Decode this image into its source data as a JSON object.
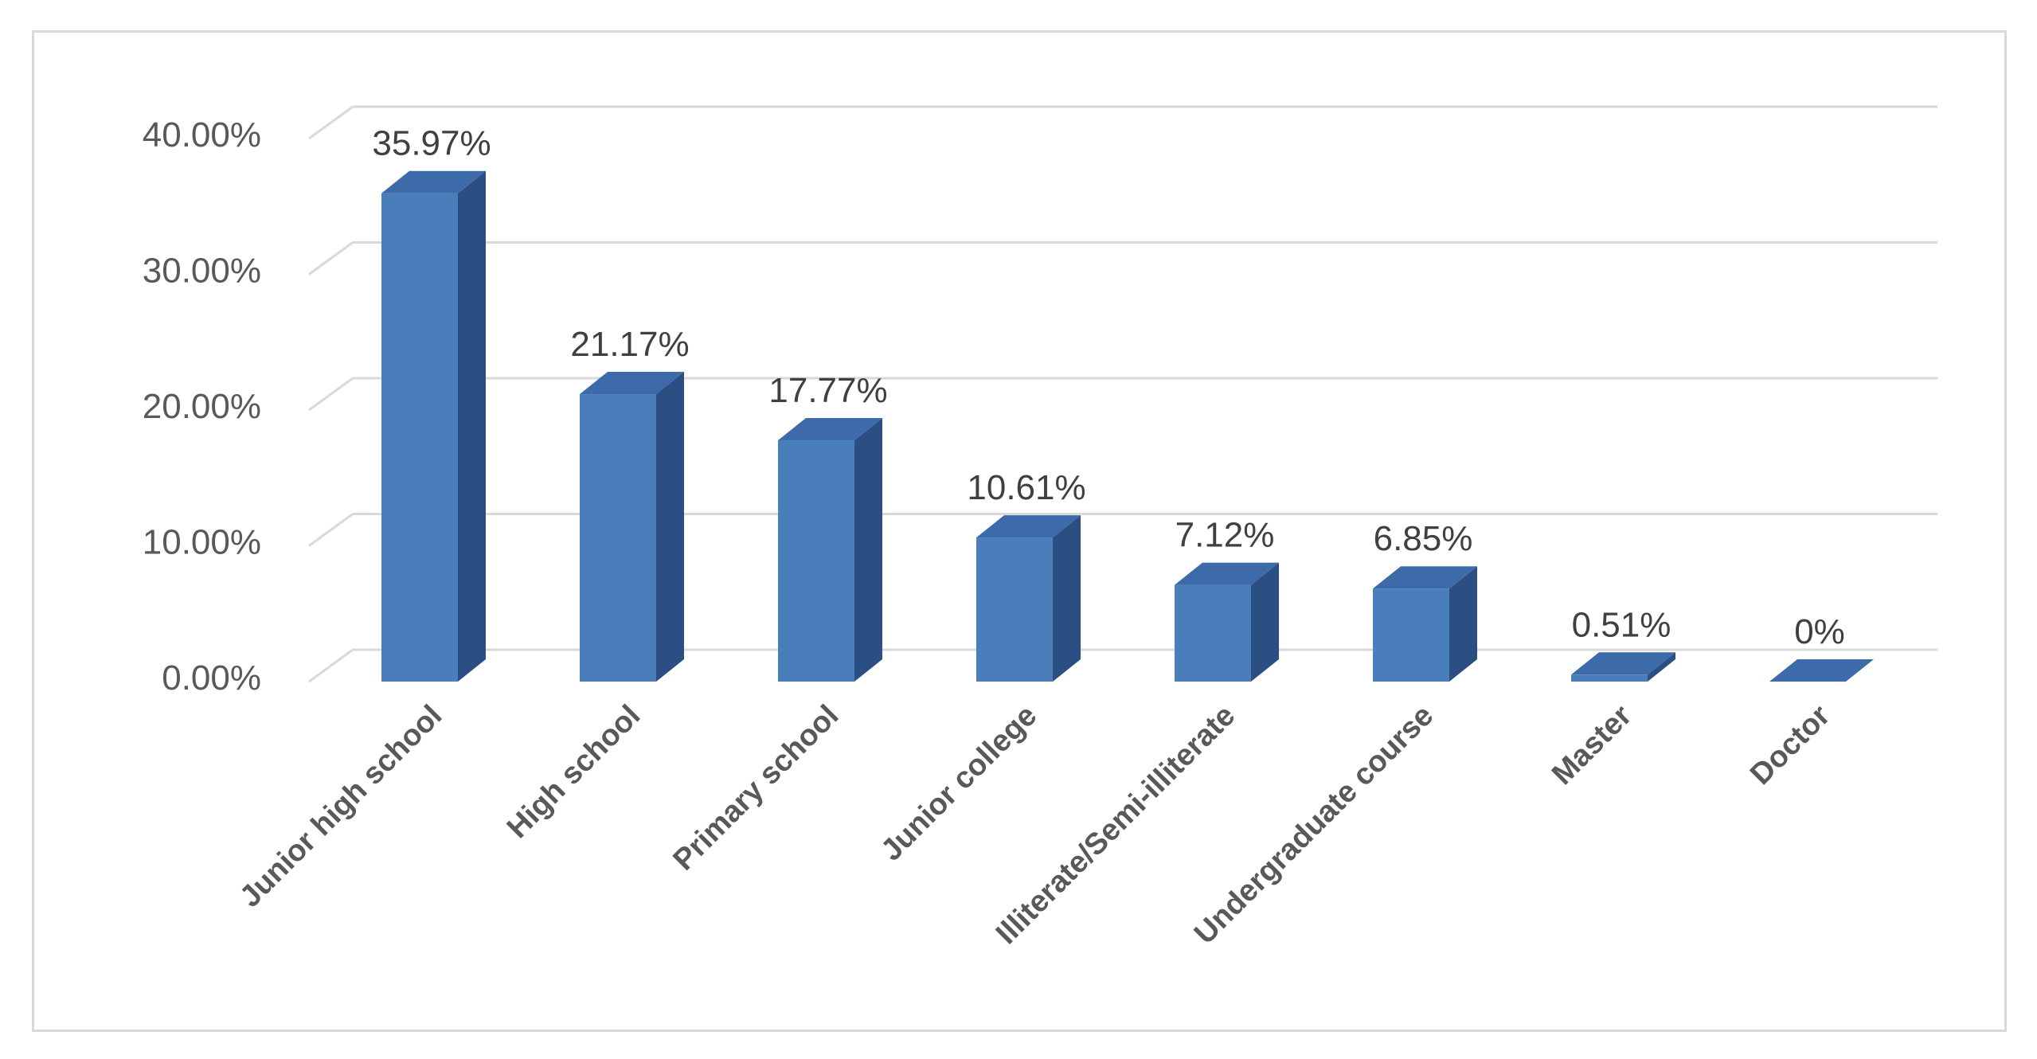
{
  "chart_data": {
    "type": "bar",
    "style": "3d-column",
    "categories": [
      "Junior high school",
      "High school",
      "Primary school",
      "Junior college",
      "Illiterate/Semi-illiterate",
      "Undergraduate course",
      "Master",
      "Doctor"
    ],
    "values": [
      35.97,
      21.17,
      17.77,
      10.61,
      7.12,
      6.85,
      0.51,
      0
    ],
    "data_labels": [
      "35.97%",
      "21.17%",
      "17.77%",
      "10.61%",
      "7.12%",
      "6.85%",
      "0.51%",
      "0%"
    ],
    "yticks": [
      0,
      10,
      20,
      30,
      40
    ],
    "ytick_labels": [
      "0.00%",
      "10.00%",
      "20.00%",
      "30.00%",
      "40.00%"
    ],
    "ylim": [
      0,
      40
    ],
    "grid": true,
    "legend": "none",
    "colors": {
      "bar_front": "#4a7ebb",
      "bar_side": "#2b4f82",
      "bar_top": "#3d6aa8",
      "grid": "#d9d9d9",
      "text": "#595959"
    }
  }
}
